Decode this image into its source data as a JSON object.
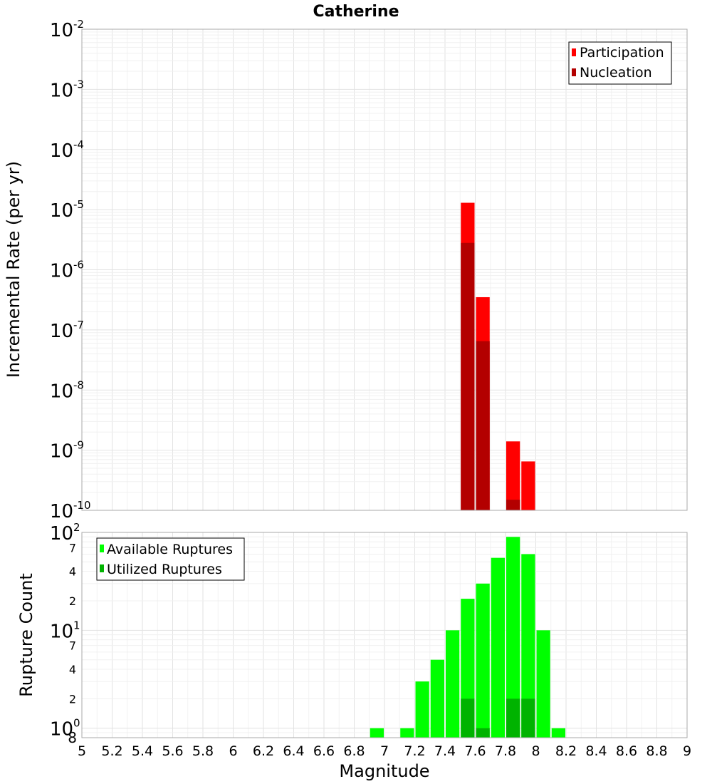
{
  "chart_data": [
    {
      "type": "bar",
      "title": "Catherine",
      "ylabel": "Incremental Rate (per yr)",
      "yscale": "log",
      "ylim": [
        1e-10,
        0.01
      ],
      "xlim": [
        5,
        9
      ],
      "bin_width": 0.1,
      "y_ticks": [
        {
          "base": "10",
          "exp": "-2"
        },
        {
          "base": "10",
          "exp": "-3"
        },
        {
          "base": "10",
          "exp": "-4"
        },
        {
          "base": "10",
          "exp": "-5"
        },
        {
          "base": "10",
          "exp": "-6"
        },
        {
          "base": "10",
          "exp": "-7"
        },
        {
          "base": "10",
          "exp": "-8"
        },
        {
          "base": "10",
          "exp": "-9"
        },
        {
          "base": "10",
          "exp": "-10"
        }
      ],
      "legend": {
        "position": "top-right"
      },
      "series": [
        {
          "name": "Participation",
          "color": "#ff0000",
          "x": [
            7.55,
            7.65,
            7.85,
            7.95
          ],
          "values": [
            1.3e-05,
            3.5e-07,
            1.4e-09,
            6.5e-10
          ]
        },
        {
          "name": "Nucleation",
          "color": "#b30000",
          "x": [
            7.55,
            7.65,
            7.85
          ],
          "values": [
            2.8e-06,
            6.5e-08,
            1.5e-10
          ]
        }
      ]
    },
    {
      "type": "bar",
      "xlabel": "Magnitude",
      "ylabel": "Rupture Count",
      "yscale": "log",
      "ylim": [
        0.8,
        100
      ],
      "xlim": [
        5,
        9
      ],
      "bin_width": 0.1,
      "x_ticks": [
        "5",
        "5.2",
        "5.4",
        "5.6",
        "5.8",
        "6",
        "6.2",
        "6.4",
        "6.6",
        "6.8",
        "7",
        "7.2",
        "7.4",
        "7.6",
        "7.8",
        "8",
        "8.2",
        "8.4",
        "8.6",
        "8.8",
        "9"
      ],
      "y_major_ticks": [
        {
          "base": "10",
          "exp": "2"
        },
        {
          "base": "10",
          "exp": "1"
        },
        {
          "base": "10",
          "exp": "0"
        }
      ],
      "y_minor_labels": [
        "7",
        "4",
        "2",
        "7",
        "4",
        "2",
        "8"
      ],
      "legend": {
        "position": "top-left"
      },
      "series": [
        {
          "name": "Available Ruptures",
          "color": "#00ff00",
          "x": [
            6.95,
            7.15,
            7.25,
            7.35,
            7.45,
            7.55,
            7.65,
            7.75,
            7.85,
            7.95,
            8.05,
            8.15
          ],
          "values": [
            1,
            1,
            3,
            5,
            10,
            21,
            30,
            55,
            90,
            60,
            10,
            1
          ]
        },
        {
          "name": "Utilized Ruptures",
          "color": "#00b300",
          "x": [
            7.55,
            7.65,
            7.85,
            7.95
          ],
          "values": [
            2,
            1,
            2,
            2
          ]
        }
      ]
    }
  ]
}
